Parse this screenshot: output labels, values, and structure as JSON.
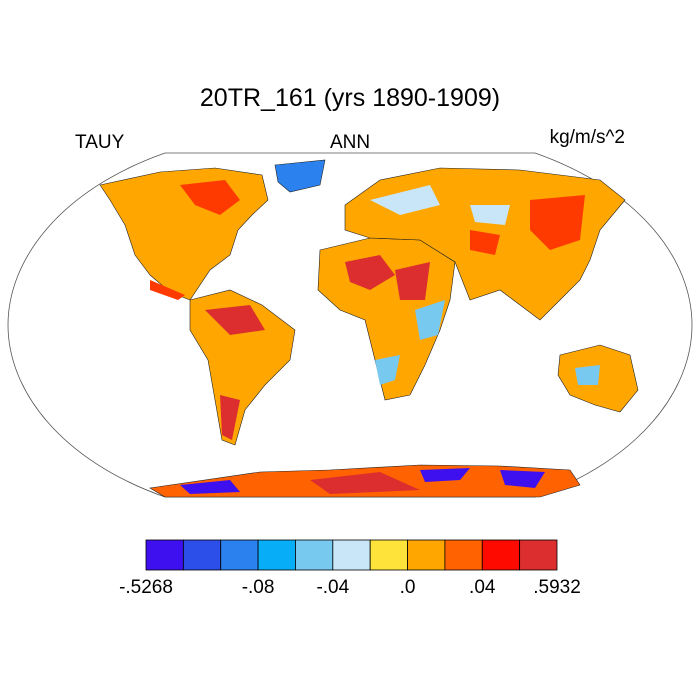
{
  "header": {
    "title": "20TR_161 (yrs 1890-1909)",
    "left": "TAUY",
    "center": "ANN",
    "right": "kg/m/s^2"
  },
  "colorbar": {
    "colors": [
      "#3f10ef",
      "#2b4fe8",
      "#2b82ef",
      "#07aef7",
      "#78c9ef",
      "#c8e6f7",
      "#fee33a",
      "#ffa600",
      "#ff6200",
      "#ff0a00",
      "#dc2e2e"
    ],
    "level_labels": [
      "-.5268",
      null,
      null,
      "-.08",
      null,
      "-.04",
      null,
      ".0",
      null,
      ".04",
      null,
      ".5932"
    ]
  }
}
